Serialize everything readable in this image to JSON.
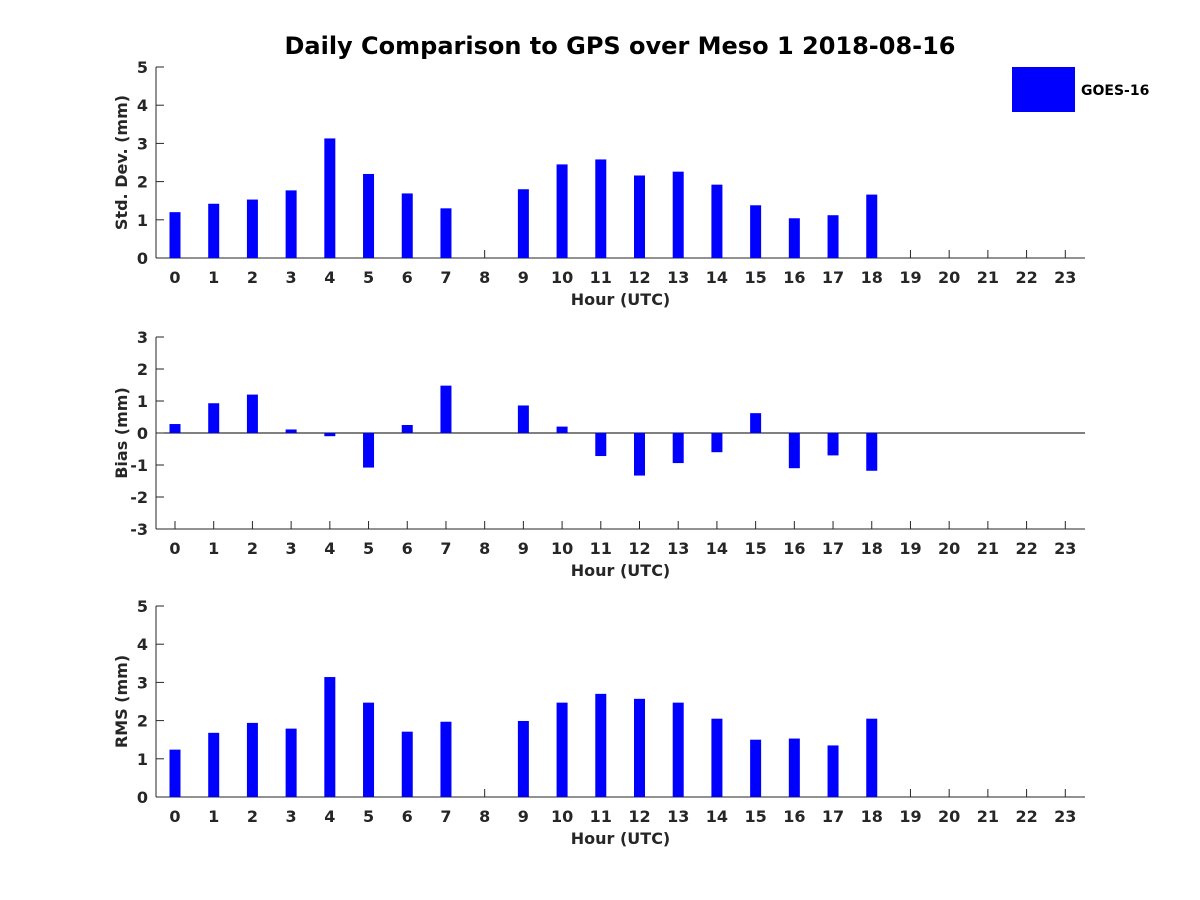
{
  "title": "Daily Comparison to GPS over Meso 1 2018-08-16",
  "legend": {
    "label": "GOES-16",
    "color": "#0000ff",
    "placement": "top-right"
  },
  "chart_data": [
    {
      "type": "bar",
      "categories": [
        "0",
        "1",
        "2",
        "3",
        "4",
        "5",
        "6",
        "7",
        "8",
        "9",
        "10",
        "11",
        "12",
        "13",
        "14",
        "15",
        "16",
        "17",
        "18",
        "19",
        "20",
        "21",
        "22",
        "23"
      ],
      "series": [
        {
          "name": "GOES-16",
          "values": [
            1.2,
            1.42,
            1.53,
            1.77,
            3.13,
            2.2,
            1.69,
            1.3,
            null,
            1.8,
            2.45,
            2.58,
            2.16,
            2.26,
            1.92,
            1.38,
            1.04,
            1.12,
            1.66,
            null,
            null,
            null,
            null,
            null
          ]
        }
      ],
      "xlabel": "Hour (UTC)",
      "ylabel": "Std. Dev. (mm)",
      "ylim": [
        0,
        5
      ],
      "yticks": [
        "0",
        "1",
        "2",
        "3",
        "4",
        "5"
      ],
      "zero_line": false
    },
    {
      "type": "bar",
      "categories": [
        "0",
        "1",
        "2",
        "3",
        "4",
        "5",
        "6",
        "7",
        "8",
        "9",
        "10",
        "11",
        "12",
        "13",
        "14",
        "15",
        "16",
        "17",
        "18",
        "19",
        "20",
        "21",
        "22",
        "23"
      ],
      "series": [
        {
          "name": "GOES-16",
          "values": [
            0.28,
            0.93,
            1.2,
            0.11,
            -0.1,
            -1.08,
            0.25,
            1.48,
            null,
            0.86,
            0.2,
            -0.72,
            -1.33,
            -0.94,
            -0.6,
            0.62,
            -1.1,
            -0.7,
            -1.18,
            null,
            null,
            null,
            null,
            null
          ]
        }
      ],
      "xlabel": "Hour (UTC)",
      "ylabel": "Bias (mm)",
      "ylim": [
        -3,
        3
      ],
      "yticks": [
        "-3",
        "-2",
        "-1",
        "0",
        "1",
        "2",
        "3"
      ],
      "zero_line": true
    },
    {
      "type": "bar",
      "categories": [
        "0",
        "1",
        "2",
        "3",
        "4",
        "5",
        "6",
        "7",
        "8",
        "9",
        "10",
        "11",
        "12",
        "13",
        "14",
        "15",
        "16",
        "17",
        "18",
        "19",
        "20",
        "21",
        "22",
        "23"
      ],
      "series": [
        {
          "name": "GOES-16",
          "values": [
            1.24,
            1.68,
            1.94,
            1.79,
            3.14,
            2.47,
            1.71,
            1.97,
            null,
            1.99,
            2.47,
            2.7,
            2.57,
            2.47,
            2.05,
            1.5,
            1.53,
            1.35,
            2.05,
            null,
            null,
            null,
            null,
            null
          ]
        }
      ],
      "xlabel": "Hour (UTC)",
      "ylabel": "RMS (mm)",
      "ylim": [
        0,
        5
      ],
      "yticks": [
        "0",
        "1",
        "2",
        "3",
        "4",
        "5"
      ],
      "zero_line": false
    }
  ]
}
